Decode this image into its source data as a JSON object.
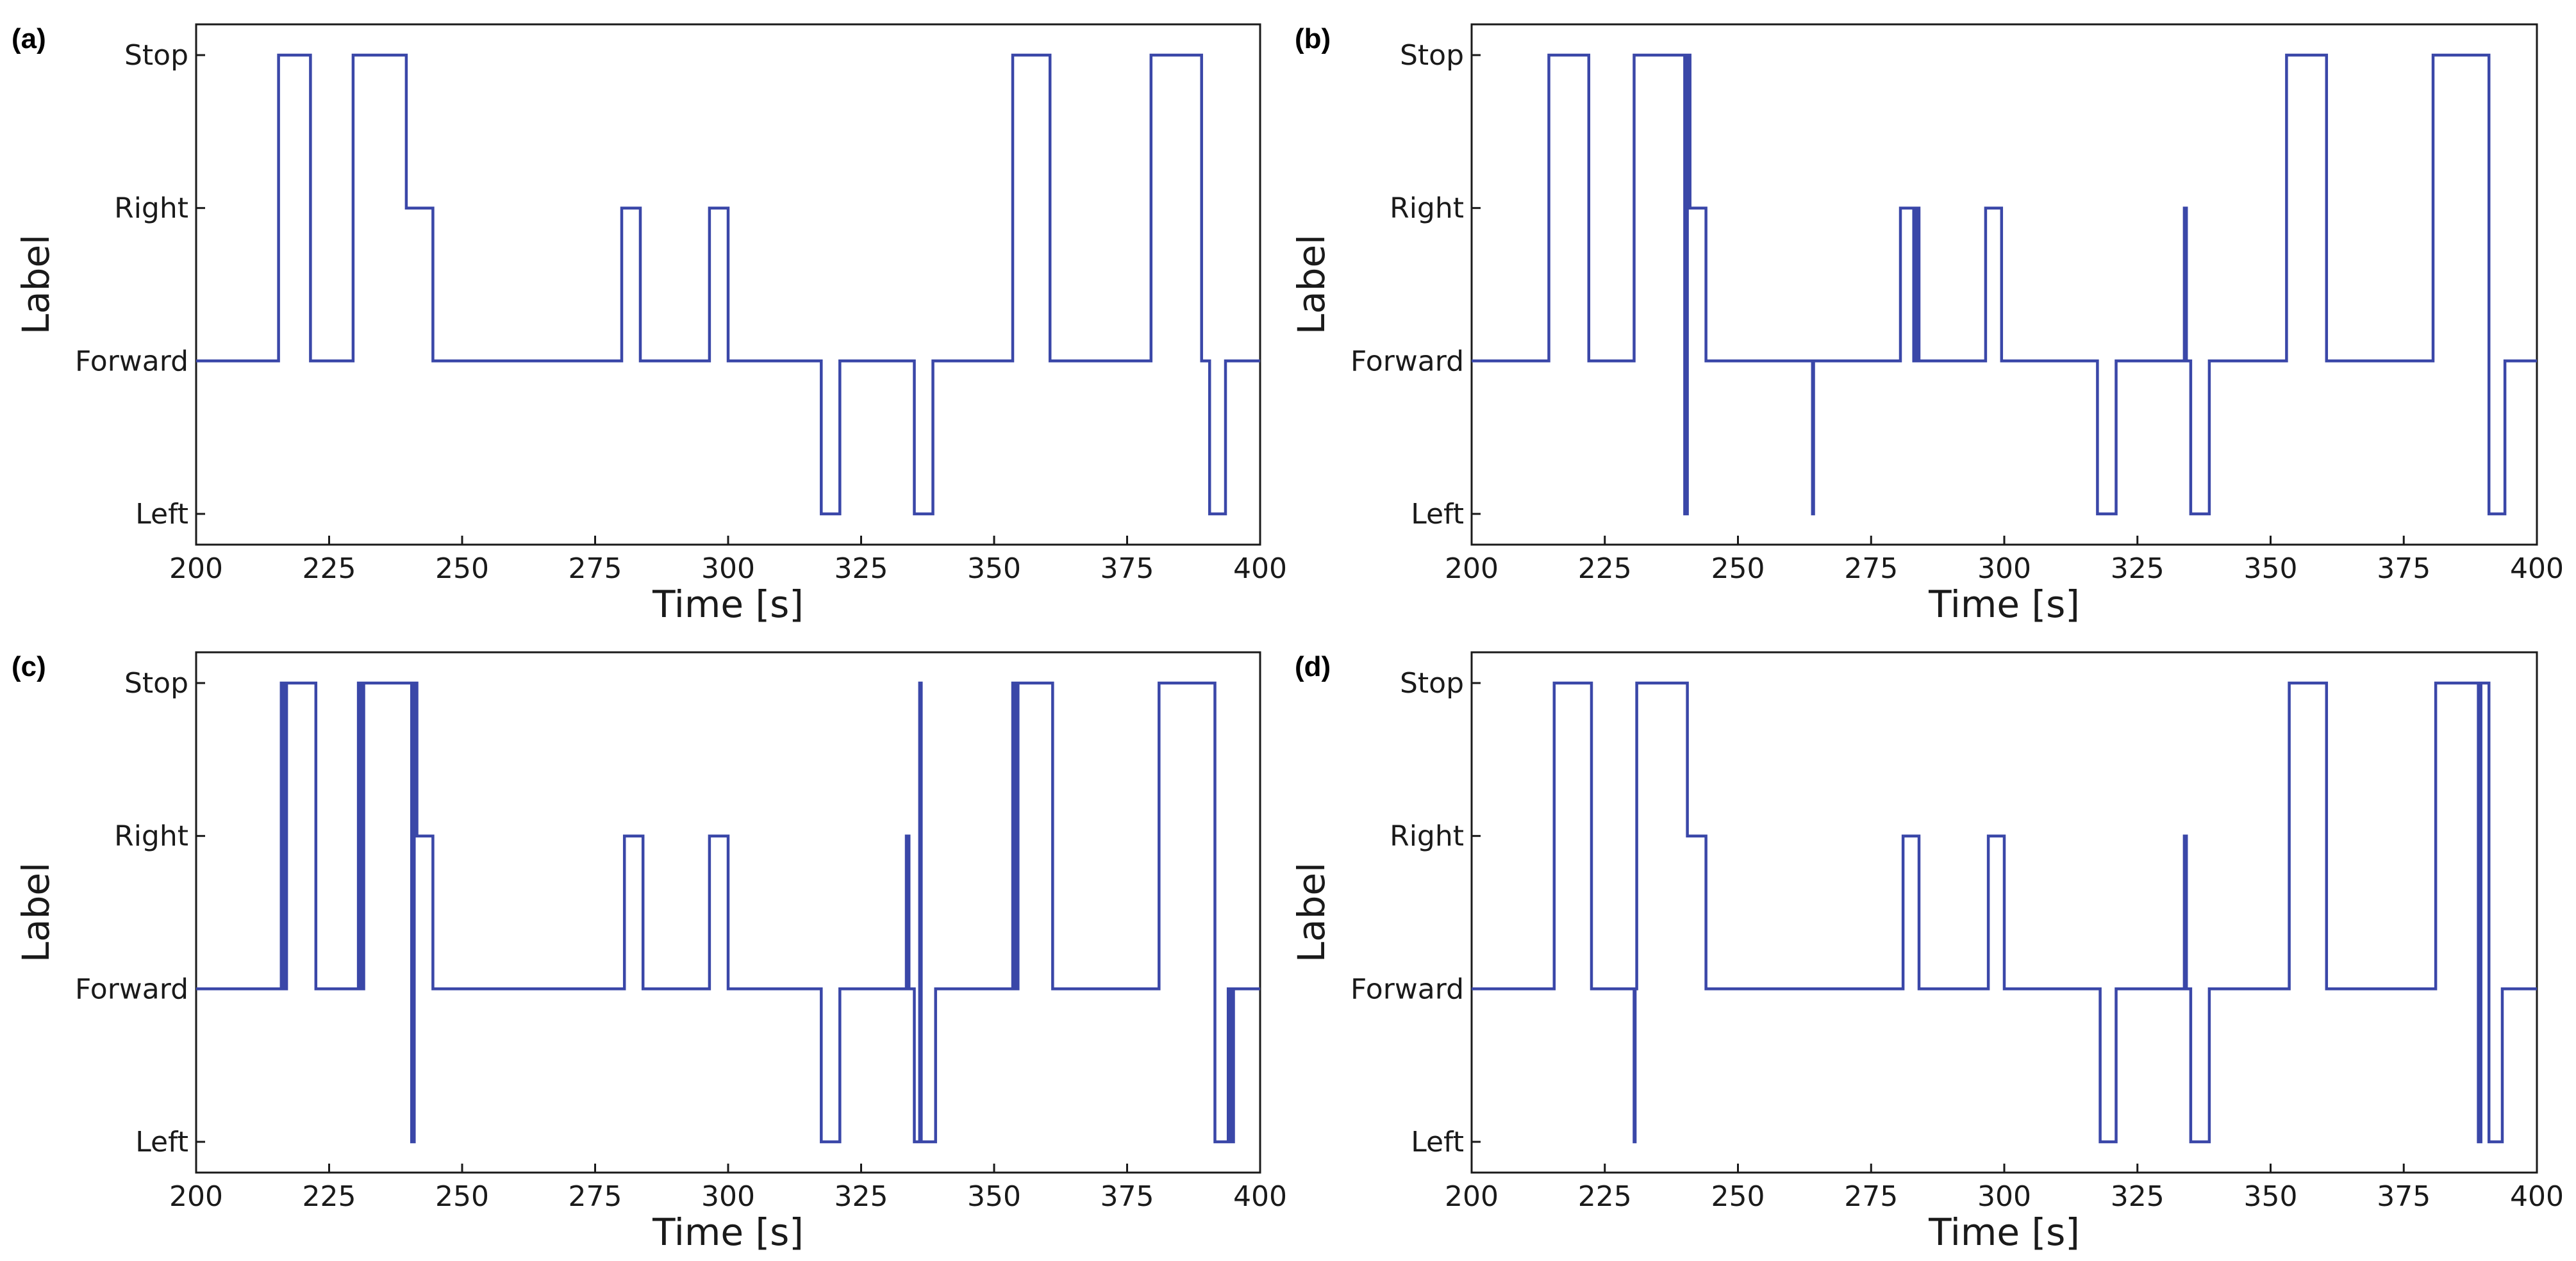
{
  "figure": {
    "series_color": "#3a47a8"
  },
  "chart_data": [
    {
      "panel": "(a)",
      "type": "line",
      "xlabel": "Time [s]",
      "ylabel": "Label",
      "xlim": [
        200,
        400
      ],
      "xticks": [
        "200",
        "225",
        "250",
        "275",
        "300",
        "325",
        "350",
        "375",
        "400"
      ],
      "ycategories": [
        "Left",
        "Forward",
        "Right",
        "Stop"
      ],
      "series": [
        {
          "name": "label",
          "step_points": [
            [
              200,
              "Forward"
            ],
            [
              215.5,
              "Forward"
            ],
            [
              215.5,
              "Stop"
            ],
            [
              221.5,
              "Stop"
            ],
            [
              221.5,
              "Forward"
            ],
            [
              229.5,
              "Forward"
            ],
            [
              229.5,
              "Stop"
            ],
            [
              239.5,
              "Stop"
            ],
            [
              239.5,
              "Right"
            ],
            [
              244.5,
              "Right"
            ],
            [
              244.5,
              "Forward"
            ],
            [
              280,
              "Forward"
            ],
            [
              280,
              "Right"
            ],
            [
              283.5,
              "Right"
            ],
            [
              283.5,
              "Forward"
            ],
            [
              296.5,
              "Forward"
            ],
            [
              296.5,
              "Right"
            ],
            [
              300,
              "Right"
            ],
            [
              300,
              "Forward"
            ],
            [
              317.5,
              "Forward"
            ],
            [
              317.5,
              "Left"
            ],
            [
              321,
              "Left"
            ],
            [
              321,
              "Forward"
            ],
            [
              335,
              "Forward"
            ],
            [
              335,
              "Left"
            ],
            [
              338.5,
              "Left"
            ],
            [
              338.5,
              "Forward"
            ],
            [
              353.5,
              "Forward"
            ],
            [
              353.5,
              "Stop"
            ],
            [
              360.5,
              "Stop"
            ],
            [
              360.5,
              "Forward"
            ],
            [
              379.5,
              "Forward"
            ],
            [
              379.5,
              "Stop"
            ],
            [
              389,
              "Stop"
            ],
            [
              389,
              "Forward"
            ],
            [
              390.5,
              "Forward"
            ],
            [
              390.5,
              "Left"
            ],
            [
              393.5,
              "Left"
            ],
            [
              393.5,
              "Forward"
            ],
            [
              400,
              "Forward"
            ]
          ]
        }
      ]
    },
    {
      "panel": "(b)",
      "type": "line",
      "xlabel": "Time [s]",
      "ylabel": "Label",
      "xlim": [
        200,
        400
      ],
      "xticks": [
        "200",
        "225",
        "250",
        "275",
        "300",
        "325",
        "350",
        "375",
        "400"
      ],
      "ycategories": [
        "Left",
        "Forward",
        "Right",
        "Stop"
      ],
      "series": [
        {
          "name": "label",
          "step_points": [
            [
              200,
              "Forward"
            ],
            [
              214.5,
              "Forward"
            ],
            [
              214.5,
              "Stop"
            ],
            [
              222,
              "Stop"
            ],
            [
              222,
              "Forward"
            ],
            [
              230.5,
              "Forward"
            ],
            [
              230.5,
              "Stop"
            ],
            [
              240,
              "Stop"
            ],
            [
              240,
              "Left"
            ],
            [
              240.5,
              "Left"
            ],
            [
              240.5,
              "Stop"
            ],
            [
              241,
              "Stop"
            ],
            [
              241,
              "Right"
            ],
            [
              244,
              "Right"
            ],
            [
              244,
              "Forward"
            ],
            [
              264,
              "Forward"
            ],
            [
              264,
              "Left"
            ],
            [
              264.2,
              "Left"
            ],
            [
              264.2,
              "Forward"
            ],
            [
              280.5,
              "Forward"
            ],
            [
              280.5,
              "Right"
            ],
            [
              283,
              "Right"
            ],
            [
              283,
              "Forward"
            ],
            [
              283.5,
              "Forward"
            ],
            [
              283.5,
              "Right"
            ],
            [
              284,
              "Right"
            ],
            [
              284,
              "Forward"
            ],
            [
              296.5,
              "Forward"
            ],
            [
              296.5,
              "Right"
            ],
            [
              299.5,
              "Right"
            ],
            [
              299.5,
              "Forward"
            ],
            [
              317.5,
              "Forward"
            ],
            [
              317.5,
              "Left"
            ],
            [
              321,
              "Left"
            ],
            [
              321,
              "Forward"
            ],
            [
              333.8,
              "Forward"
            ],
            [
              333.8,
              "Right"
            ],
            [
              334.2,
              "Right"
            ],
            [
              334.2,
              "Forward"
            ],
            [
              335,
              "Forward"
            ],
            [
              335,
              "Left"
            ],
            [
              338.5,
              "Left"
            ],
            [
              338.5,
              "Forward"
            ],
            [
              353,
              "Forward"
            ],
            [
              353,
              "Stop"
            ],
            [
              360.5,
              "Stop"
            ],
            [
              360.5,
              "Forward"
            ],
            [
              380.5,
              "Forward"
            ],
            [
              380.5,
              "Stop"
            ],
            [
              391,
              "Stop"
            ],
            [
              391,
              "Left"
            ],
            [
              394,
              "Left"
            ],
            [
              394,
              "Forward"
            ],
            [
              400,
              "Forward"
            ]
          ]
        }
      ]
    },
    {
      "panel": "(c)",
      "type": "line",
      "xlabel": "Time [s]",
      "ylabel": "Label",
      "xlim": [
        200,
        400
      ],
      "xticks": [
        "200",
        "225",
        "250",
        "275",
        "300",
        "325",
        "350",
        "375",
        "400"
      ],
      "ycategories": [
        "Left",
        "Forward",
        "Right",
        "Stop"
      ],
      "series": [
        {
          "name": "label",
          "step_points": [
            [
              200,
              "Forward"
            ],
            [
              216,
              "Forward"
            ],
            [
              216,
              "Stop"
            ],
            [
              216.5,
              "Stop"
            ],
            [
              216.5,
              "Forward"
            ],
            [
              217,
              "Forward"
            ],
            [
              217,
              "Stop"
            ],
            [
              222.5,
              "Stop"
            ],
            [
              222.5,
              "Forward"
            ],
            [
              230.5,
              "Forward"
            ],
            [
              230.5,
              "Stop"
            ],
            [
              231,
              "Stop"
            ],
            [
              231,
              "Forward"
            ],
            [
              231.5,
              "Forward"
            ],
            [
              231.5,
              "Stop"
            ],
            [
              240.5,
              "Stop"
            ],
            [
              240.5,
              "Left"
            ],
            [
              241,
              "Left"
            ],
            [
              241,
              "Stop"
            ],
            [
              241.5,
              "Stop"
            ],
            [
              241.5,
              "Right"
            ],
            [
              244.5,
              "Right"
            ],
            [
              244.5,
              "Forward"
            ],
            [
              280.5,
              "Forward"
            ],
            [
              280.5,
              "Right"
            ],
            [
              284,
              "Right"
            ],
            [
              284,
              "Forward"
            ],
            [
              296.5,
              "Forward"
            ],
            [
              296.5,
              "Right"
            ],
            [
              300,
              "Right"
            ],
            [
              300,
              "Forward"
            ],
            [
              317.5,
              "Forward"
            ],
            [
              317.5,
              "Left"
            ],
            [
              321,
              "Left"
            ],
            [
              321,
              "Forward"
            ],
            [
              333.5,
              "Forward"
            ],
            [
              333.5,
              "Right"
            ],
            [
              334,
              "Right"
            ],
            [
              334,
              "Forward"
            ],
            [
              335,
              "Forward"
            ],
            [
              335,
              "Left"
            ],
            [
              336,
              "Left"
            ],
            [
              336,
              "Stop"
            ],
            [
              336.3,
              "Stop"
            ],
            [
              336.3,
              "Left"
            ],
            [
              339,
              "Left"
            ],
            [
              339,
              "Forward"
            ],
            [
              353.5,
              "Forward"
            ],
            [
              353.5,
              "Stop"
            ],
            [
              354,
              "Stop"
            ],
            [
              354,
              "Forward"
            ],
            [
              354.5,
              "Forward"
            ],
            [
              354.5,
              "Stop"
            ],
            [
              361,
              "Stop"
            ],
            [
              361,
              "Forward"
            ],
            [
              381,
              "Forward"
            ],
            [
              381,
              "Stop"
            ],
            [
              391.5,
              "Stop"
            ],
            [
              391.5,
              "Left"
            ],
            [
              394,
              "Left"
            ],
            [
              394,
              "Forward"
            ],
            [
              394.5,
              "Forward"
            ],
            [
              394.5,
              "Left"
            ],
            [
              395,
              "Left"
            ],
            [
              395,
              "Forward"
            ],
            [
              400,
              "Forward"
            ]
          ]
        }
      ]
    },
    {
      "panel": "(d)",
      "type": "line",
      "xlabel": "Time [s]",
      "ylabel": "Label",
      "xlim": [
        200,
        400
      ],
      "xticks": [
        "200",
        "225",
        "250",
        "275",
        "300",
        "325",
        "350",
        "375",
        "400"
      ],
      "ycategories": [
        "Left",
        "Forward",
        "Right",
        "Stop"
      ],
      "series": [
        {
          "name": "label",
          "step_points": [
            [
              200,
              "Forward"
            ],
            [
              215.5,
              "Forward"
            ],
            [
              215.5,
              "Stop"
            ],
            [
              222.5,
              "Stop"
            ],
            [
              222.5,
              "Forward"
            ],
            [
              230.5,
              "Forward"
            ],
            [
              230.5,
              "Left"
            ],
            [
              230.7,
              "Left"
            ],
            [
              230.7,
              "Forward"
            ],
            [
              231,
              "Forward"
            ],
            [
              231,
              "Stop"
            ],
            [
              240.5,
              "Stop"
            ],
            [
              240.5,
              "Right"
            ],
            [
              244,
              "Right"
            ],
            [
              244,
              "Forward"
            ],
            [
              281,
              "Forward"
            ],
            [
              281,
              "Right"
            ],
            [
              284,
              "Right"
            ],
            [
              284,
              "Forward"
            ],
            [
              297,
              "Forward"
            ],
            [
              297,
              "Right"
            ],
            [
              300,
              "Right"
            ],
            [
              300,
              "Forward"
            ],
            [
              318,
              "Forward"
            ],
            [
              318,
              "Left"
            ],
            [
              321,
              "Left"
            ],
            [
              321,
              "Forward"
            ],
            [
              333.8,
              "Forward"
            ],
            [
              333.8,
              "Right"
            ],
            [
              334.2,
              "Right"
            ],
            [
              334.2,
              "Forward"
            ],
            [
              335,
              "Forward"
            ],
            [
              335,
              "Left"
            ],
            [
              338.5,
              "Left"
            ],
            [
              338.5,
              "Forward"
            ],
            [
              353.5,
              "Forward"
            ],
            [
              353.5,
              "Stop"
            ],
            [
              360.5,
              "Stop"
            ],
            [
              360.5,
              "Forward"
            ],
            [
              381,
              "Forward"
            ],
            [
              381,
              "Stop"
            ],
            [
              389,
              "Stop"
            ],
            [
              389,
              "Left"
            ],
            [
              389.5,
              "Left"
            ],
            [
              389.5,
              "Stop"
            ],
            [
              391,
              "Stop"
            ],
            [
              391,
              "Left"
            ],
            [
              393.5,
              "Left"
            ],
            [
              393.5,
              "Forward"
            ],
            [
              400,
              "Forward"
            ]
          ]
        }
      ]
    }
  ]
}
